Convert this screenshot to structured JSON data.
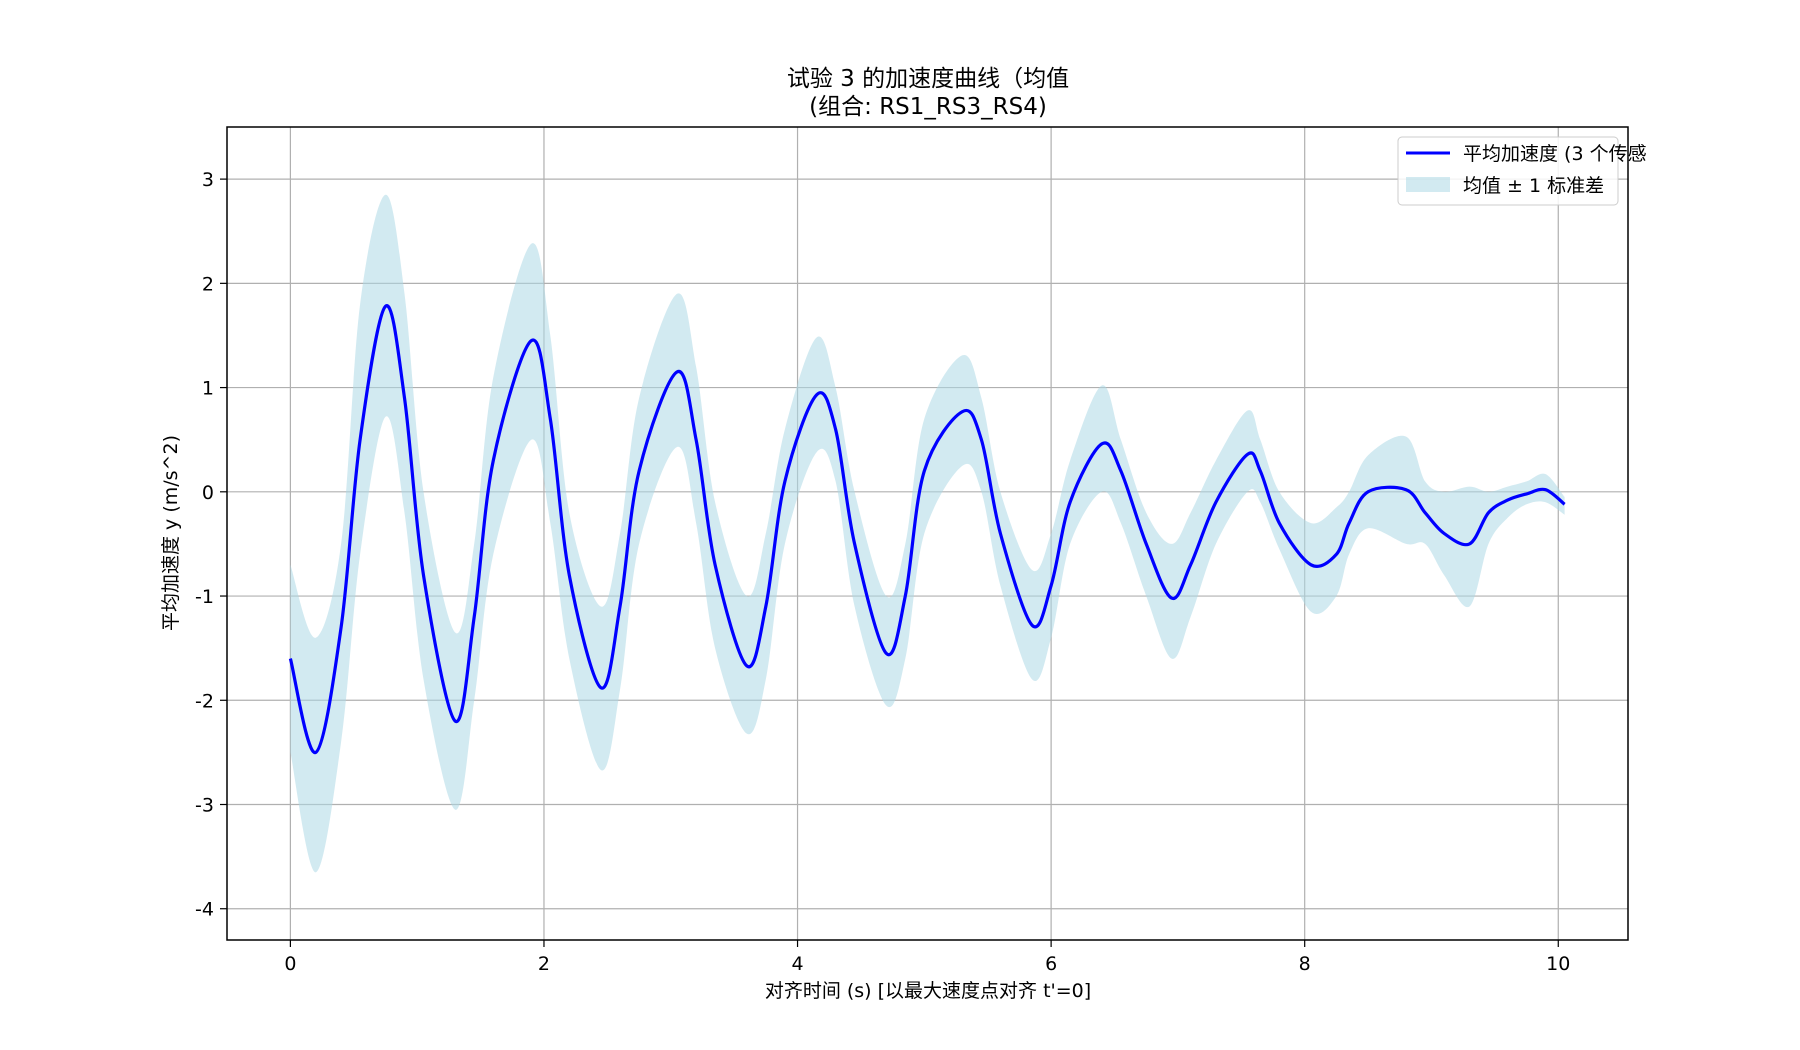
{
  "chart_data": {
    "type": "line",
    "title": "试验 3 的加速度曲线（均值",
    "subtitle": "(组合: RS1_RS3_RS4)",
    "xlabel": "对齐时间 (s) [以最大速度点对齐 t'=0]",
    "ylabel": "平均加速度 y (m/s^2)",
    "xlim": [
      -0.5,
      10.55
    ],
    "ylim": [
      -4.3,
      3.5
    ],
    "xticks": [
      0,
      2,
      4,
      6,
      8,
      10
    ],
    "xtick_labels": [
      "0",
      "2",
      "4",
      "6",
      "8",
      "10"
    ],
    "yticks": [
      3,
      2,
      1,
      0,
      -1,
      -2,
      -3,
      -4
    ],
    "ytick_labels": [
      "3",
      "2",
      "1",
      "0",
      "-1",
      "-2",
      "-3",
      "-4"
    ],
    "grid": true,
    "legend_position": "top-right",
    "legend": {
      "mean_label": "平均加速度 (3 个传感",
      "band_label": "均值 ± 1 标准差"
    },
    "colors": {
      "mean_line": "#0000ff",
      "band_fill": "#add8e6",
      "grid": "#b0b0b0",
      "axes": "#000000"
    },
    "series": [
      {
        "name": "平均加速度 (3 个传感",
        "x": [
          0.0,
          0.2,
          0.4,
          0.55,
          0.75,
          0.9,
          1.05,
          1.3,
          1.45,
          1.6,
          1.9,
          2.05,
          2.2,
          2.45,
          2.6,
          2.75,
          3.05,
          3.2,
          3.35,
          3.6,
          3.75,
          3.9,
          4.15,
          4.3,
          4.45,
          4.7,
          4.85,
          5.0,
          5.3,
          5.45,
          5.6,
          5.85,
          6.0,
          6.15,
          6.4,
          6.55,
          6.75,
          6.95,
          7.1,
          7.3,
          7.55,
          7.65,
          7.8,
          8.05,
          8.25,
          8.35,
          8.5,
          8.8,
          8.95,
          9.1,
          9.3,
          9.45,
          9.6,
          9.75,
          9.9,
          10.05
        ],
        "y": [
          -1.6,
          -2.5,
          -1.3,
          0.5,
          1.78,
          0.9,
          -0.8,
          -2.2,
          -1.2,
          0.3,
          1.45,
          0.7,
          -0.8,
          -1.88,
          -1.1,
          0.2,
          1.15,
          0.5,
          -0.7,
          -1.67,
          -1.1,
          0.1,
          0.93,
          0.6,
          -0.5,
          -1.55,
          -1.0,
          0.2,
          0.77,
          0.5,
          -0.4,
          -1.28,
          -0.9,
          -0.1,
          0.46,
          0.2,
          -0.5,
          -1.02,
          -0.7,
          -0.1,
          0.36,
          0.2,
          -0.3,
          -0.7,
          -0.6,
          -0.3,
          0.0,
          0.02,
          -0.2,
          -0.4,
          -0.5,
          -0.2,
          -0.08,
          -0.02,
          0.02,
          -0.12
        ]
      }
    ],
    "band": {
      "name": "均值 ± 1 标准差",
      "x": [
        0.0,
        0.2,
        0.4,
        0.55,
        0.75,
        0.9,
        1.05,
        1.3,
        1.45,
        1.6,
        1.9,
        2.05,
        2.2,
        2.45,
        2.6,
        2.75,
        3.05,
        3.2,
        3.35,
        3.6,
        3.75,
        3.9,
        4.15,
        4.3,
        4.45,
        4.7,
        4.85,
        5.0,
        5.3,
        5.45,
        5.6,
        5.85,
        6.0,
        6.15,
        6.4,
        6.55,
        6.75,
        6.95,
        7.1,
        7.3,
        7.55,
        7.65,
        7.8,
        8.05,
        8.25,
        8.35,
        8.5,
        8.8,
        8.95,
        9.1,
        9.3,
        9.45,
        9.6,
        9.75,
        9.9,
        10.05
      ],
      "upper": [
        -0.7,
        -1.4,
        -0.5,
        1.8,
        2.85,
        1.9,
        0.0,
        -1.35,
        -0.5,
        1.1,
        2.38,
        1.5,
        -0.2,
        -1.1,
        -0.4,
        0.9,
        1.9,
        1.2,
        -0.1,
        -1.0,
        -0.4,
        0.6,
        1.48,
        1.0,
        0.0,
        -1.0,
        -0.5,
        0.7,
        1.31,
        0.9,
        0.0,
        -0.75,
        -0.4,
        0.3,
        1.02,
        0.5,
        -0.2,
        -0.5,
        -0.2,
        0.3,
        0.78,
        0.5,
        0.0,
        -0.3,
        -0.15,
        0.0,
        0.35,
        0.53,
        0.1,
        0.0,
        0.05,
        0.0,
        0.05,
        0.1,
        0.17,
        -0.05
      ],
      "lower": [
        -2.5,
        -3.65,
        -2.4,
        -0.6,
        0.72,
        -0.2,
        -1.8,
        -3.05,
        -2.0,
        -0.6,
        0.5,
        -0.3,
        -1.6,
        -2.67,
        -1.9,
        -0.5,
        0.43,
        -0.3,
        -1.5,
        -2.32,
        -1.8,
        -0.5,
        0.38,
        0.1,
        -1.1,
        -2.05,
        -1.6,
        -0.4,
        0.25,
        0.0,
        -0.9,
        -1.8,
        -1.4,
        -0.5,
        0.0,
        -0.3,
        -1.0,
        -1.6,
        -1.2,
        -0.5,
        0.0,
        -0.1,
        -0.55,
        -1.15,
        -1.0,
        -0.6,
        -0.35,
        -0.5,
        -0.5,
        -0.8,
        -1.1,
        -0.5,
        -0.25,
        -0.12,
        -0.1,
        -0.22
      ]
    }
  }
}
